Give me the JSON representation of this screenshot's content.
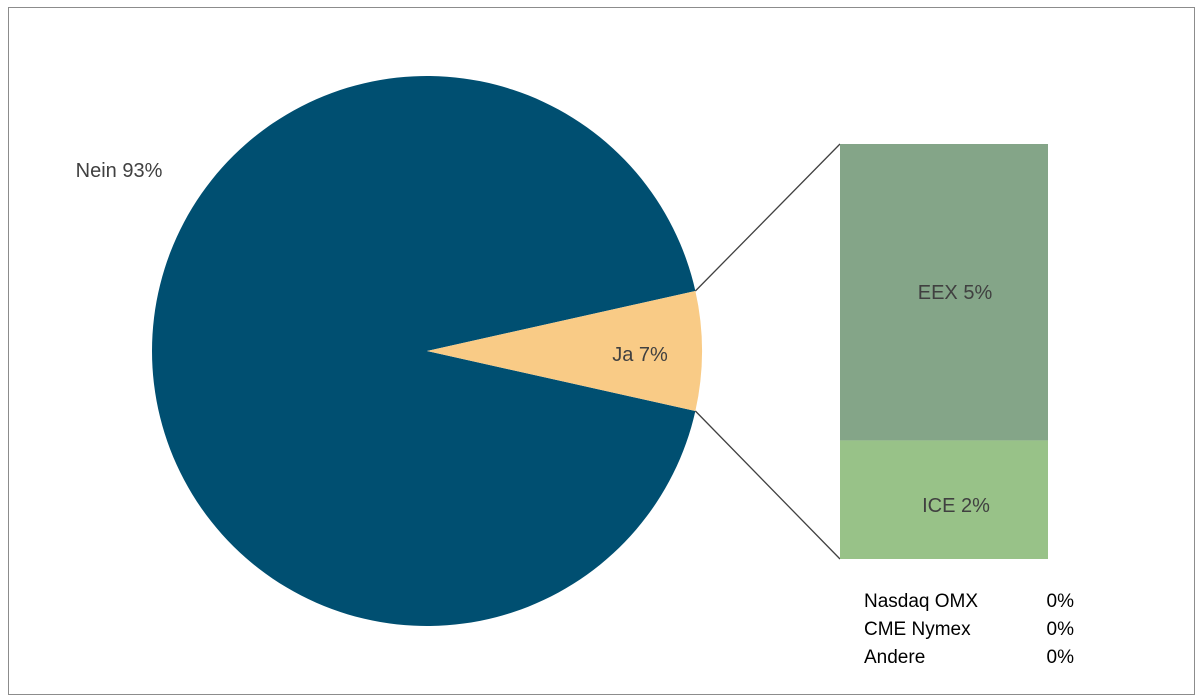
{
  "chart_data": {
    "type": "pie",
    "title": "",
    "main_pie": {
      "slices": [
        {
          "label": "Nein",
          "value": 93,
          "display": "Nein 93%",
          "color": "#004f71"
        },
        {
          "label": "Ja",
          "value": 7,
          "display": "Ja 7%",
          "color": "#f9cb86"
        }
      ]
    },
    "breakdown_bar": {
      "of_slice": "Ja",
      "segments": [
        {
          "label": "EEX",
          "value": 5,
          "display": "EEX 5%",
          "color": "#84a588"
        },
        {
          "label": "ICE",
          "value": 2,
          "display": "ICE 2%",
          "color": "#98c288"
        }
      ],
      "zero_items": [
        {
          "label": "Nasdaq OMX",
          "value": "0%"
        },
        {
          "label": "CME Nymex",
          "value": "0%"
        },
        {
          "label": "Andere",
          "value": "0%"
        }
      ]
    },
    "connector_color": "#404040"
  }
}
